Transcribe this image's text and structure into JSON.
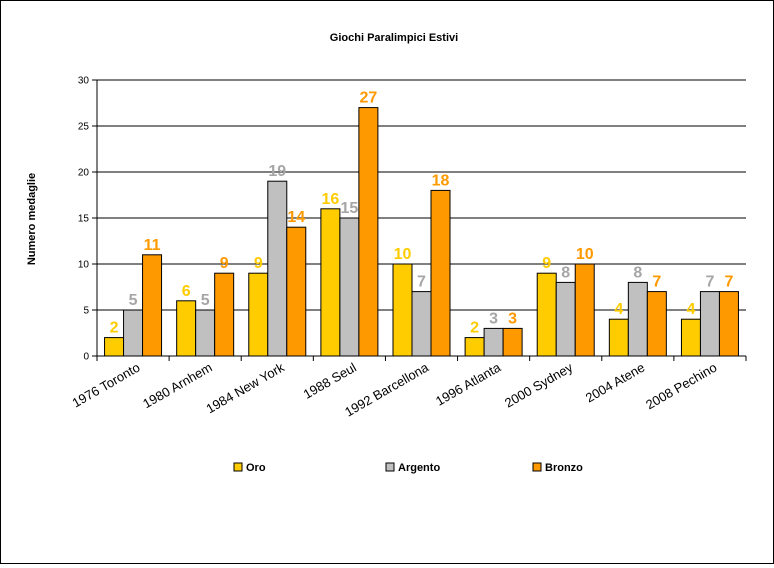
{
  "chart_data": {
    "type": "bar",
    "title": "Giochi Paralimpici Estivi",
    "xlabel": "",
    "ylabel": "Numero medaglie",
    "ylim": [
      0,
      30
    ],
    "yticks": [
      0,
      5,
      10,
      15,
      20,
      25,
      30
    ],
    "grid": true,
    "legend_position": "bottom",
    "categories": [
      "1976 Toronto",
      "1980 Arnhem",
      "1984 New York",
      "1988 Seul",
      "1992 Barcellona",
      "1996 Atlanta",
      "2000 Sydney",
      "2004 Atene",
      "2008 Pechino"
    ],
    "series": [
      {
        "name": "Oro",
        "color": "#FFCC00",
        "label_color": "#FFCC00",
        "values": [
          2,
          6,
          9,
          16,
          10,
          2,
          9,
          4,
          4
        ]
      },
      {
        "name": "Argento",
        "color": "#C0C0C0",
        "label_color": "#A6A6A6",
        "values": [
          5,
          5,
          19,
          15,
          7,
          3,
          8,
          8,
          7
        ]
      },
      {
        "name": "Bronzo",
        "color": "#FF9900",
        "label_color": "#FF9900",
        "values": [
          11,
          9,
          14,
          27,
          18,
          3,
          10,
          7,
          7
        ]
      }
    ]
  }
}
